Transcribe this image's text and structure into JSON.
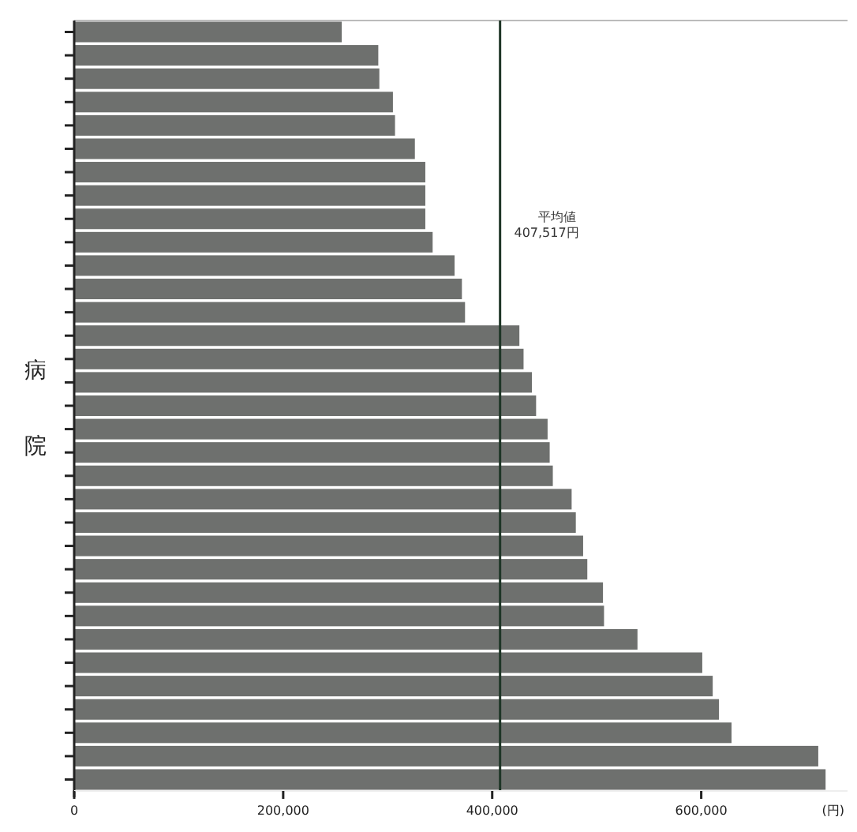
{
  "chart_data": {
    "type": "bar",
    "orientation": "horizontal",
    "ylabel": "病院",
    "xlabel": "(円)",
    "categories": [
      null,
      null,
      null,
      null,
      null,
      null,
      null,
      null,
      null,
      null,
      null,
      null,
      null,
      null,
      null,
      null,
      null,
      null,
      null,
      null,
      null,
      null,
      null,
      null,
      null,
      null,
      null,
      null,
      null,
      null,
      null,
      null,
      null
    ],
    "values": [
      256000,
      291000,
      292000,
      305000,
      307000,
      326000,
      336000,
      336000,
      336000,
      343000,
      364000,
      371000,
      374000,
      426000,
      430000,
      438000,
      442000,
      453000,
      455000,
      458000,
      476000,
      480000,
      487000,
      491000,
      506000,
      507000,
      539000,
      601000,
      611000,
      617000,
      629000,
      712000,
      719000
    ],
    "color": "#6e706e",
    "xlim": [
      0,
      740000
    ],
    "xticks": [
      {
        "value": 0,
        "label": "0"
      },
      {
        "value": 200000,
        "label": "200,000"
      },
      {
        "value": 400000,
        "label": "400,000"
      },
      {
        "value": 600000,
        "label": "600,000"
      }
    ],
    "ref_lines": [
      {
        "axis": "x",
        "value": 407517,
        "label": "平均値\n407,517円",
        "color": "#1e3526"
      }
    ],
    "grid": false
  }
}
